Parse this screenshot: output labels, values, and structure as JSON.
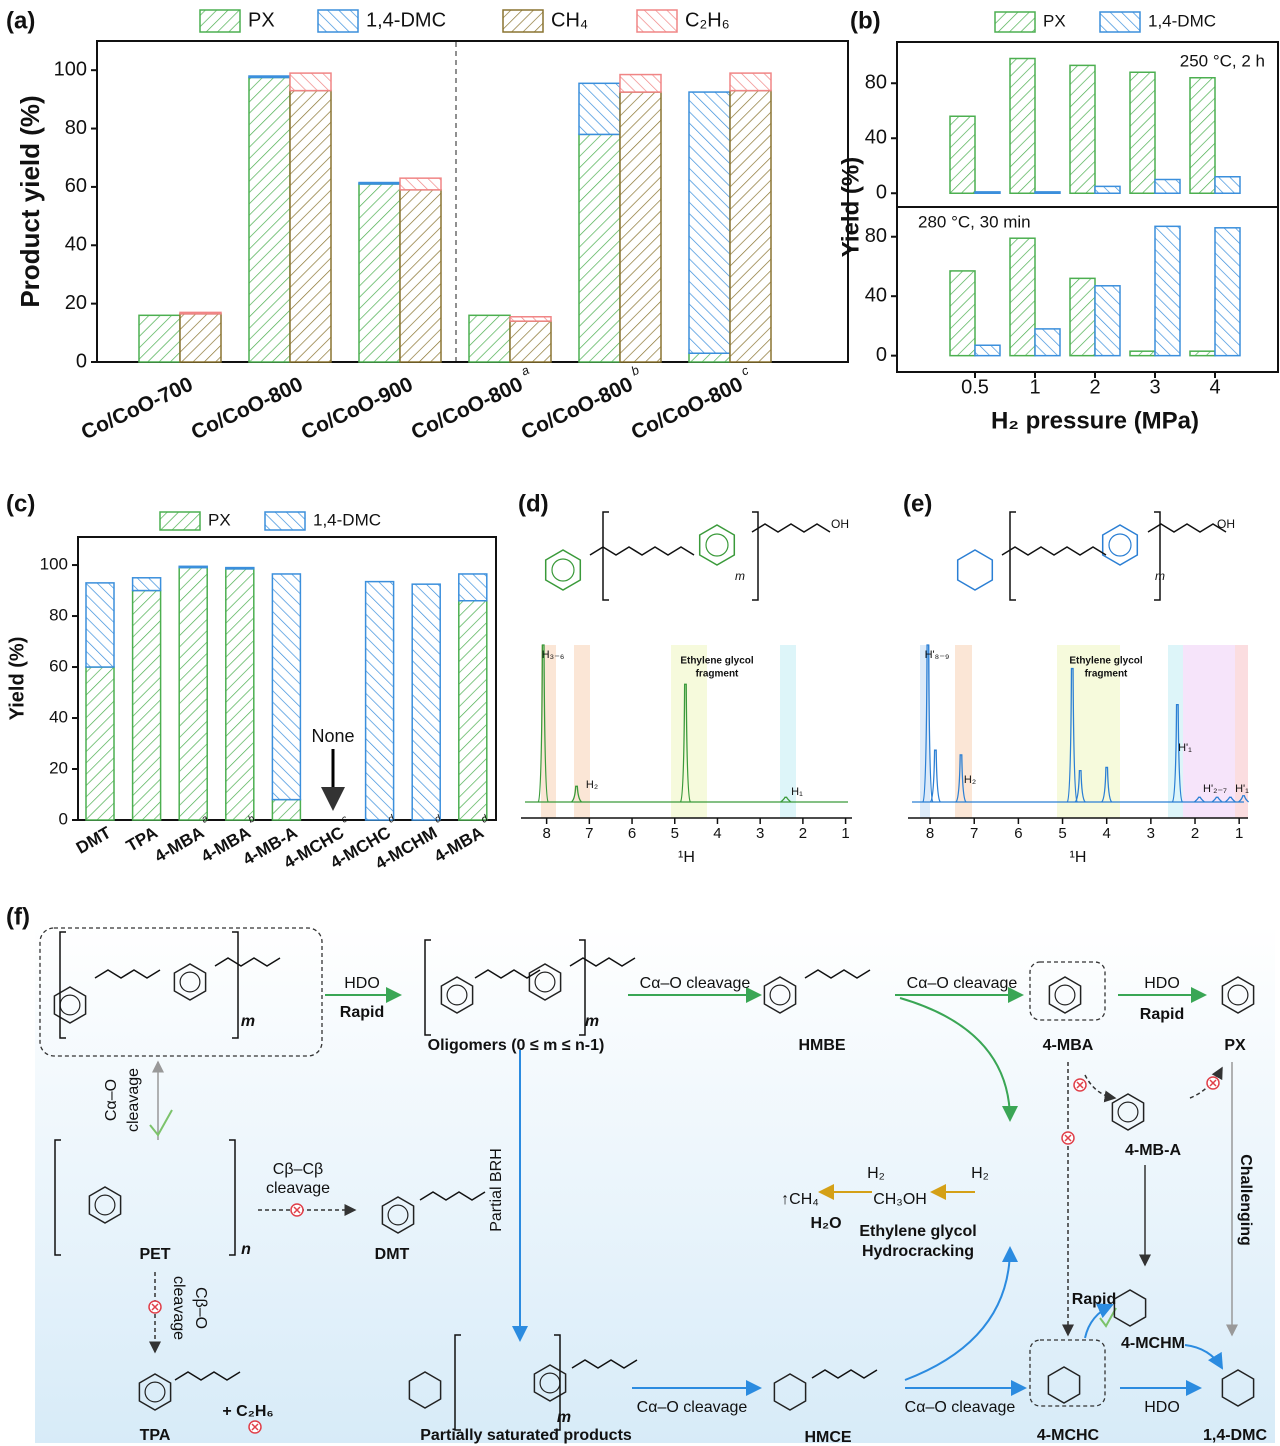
{
  "panel_labels": [
    "(a)",
    "(b)",
    "(c)",
    "(d)",
    "(e)",
    "(f)"
  ],
  "chart_data": [
    {
      "type": "bar",
      "stacked": true,
      "ylabel": "Product yield (%)",
      "categories": [
        "Co/CoO-700",
        "Co/CoO-800",
        "Co/CoO-900",
        "Co/CoO-800",
        "Co/CoO-800",
        "Co/CoO-800"
      ],
      "category_notes": [
        null,
        null,
        null,
        "a",
        "b",
        "c"
      ],
      "series": [
        {
          "name": "PX",
          "color": "#4caf50",
          "hatch": "/",
          "stack": 0,
          "values": [
            16,
            97.5,
            61,
            16,
            78,
            3
          ]
        },
        {
          "name": "1,4-DMC",
          "color": "#3b8fdc",
          "hatch": "\\",
          "stack": 0,
          "values": [
            0,
            0.5,
            0.5,
            0,
            17.5,
            89.5
          ]
        },
        {
          "name": "CH₄",
          "color": "#8a7430",
          "hatch": "/",
          "stack": 1,
          "values": [
            16.5,
            93,
            59,
            14,
            92.5,
            93
          ]
        },
        {
          "name": "C₂H₆",
          "color": "#f08585",
          "hatch": "\\",
          "stack": 1,
          "values": [
            0.5,
            6,
            4,
            1.5,
            6,
            6
          ]
        }
      ],
      "ylim": [
        0,
        110
      ],
      "yticks": [
        0,
        20,
        40,
        60,
        80,
        100
      ],
      "legend": "top"
    },
    {
      "type": "panels",
      "xlabel": "H₂ pressure (MPa)",
      "ylabel": "Yield (%)",
      "categories": [
        "0.5",
        "1",
        "2",
        "3",
        "4"
      ],
      "series": [
        {
          "name": "PX",
          "color": "#4caf50",
          "hatch": "/"
        },
        {
          "name": "1,4-DMC",
          "color": "#3b8fdc",
          "hatch": "\\"
        }
      ],
      "panels": [
        {
          "annotation": "250 °C, 2 h",
          "ylim": [
            -10,
            110
          ],
          "yticks": [
            0,
            40,
            80
          ],
          "values": [
            [
              56,
              98,
              93,
              88,
              84
            ],
            [
              1,
              1,
              5,
              10,
              12
            ]
          ]
        },
        {
          "annotation": "280 °C, 30 min",
          "ylim": [
            -11,
            100
          ],
          "yticks": [
            0,
            40,
            80
          ],
          "values": [
            [
              57,
              79,
              52,
              3,
              3
            ],
            [
              7,
              18,
              47,
              87,
              86
            ]
          ]
        }
      ],
      "legend": "top"
    },
    {
      "type": "bar",
      "stacked": true,
      "ylabel": "Yield (%)",
      "categories": [
        "DMT",
        "TPA",
        "4-MBA",
        "4-MBA",
        "4-MB-A",
        "4-MCHC",
        "4-MCHC",
        "4-MCHM",
        "4-MBA"
      ],
      "category_notes": [
        null,
        null,
        "a",
        "b",
        null,
        "c",
        "d",
        "d",
        "d"
      ],
      "series": [
        {
          "name": "PX",
          "color": "#4caf50",
          "hatch": "/",
          "stack": 0,
          "values": [
            60,
            90,
            99,
            98.5,
            8,
            0,
            0,
            0,
            86
          ]
        },
        {
          "name": "1,4-DMC",
          "color": "#3b8fdc",
          "hatch": "\\",
          "stack": 0,
          "values": [
            33,
            5,
            0.5,
            0.5,
            88.5,
            0,
            93.5,
            92.5,
            10.5
          ]
        }
      ],
      "annotation": "None",
      "ylim": [
        0,
        111
      ],
      "yticks": [
        0,
        20,
        40,
        60,
        80,
        100
      ],
      "legend": "top"
    },
    {
      "type": "spectrum",
      "xlabel": "¹H",
      "color": "#3a9a3a",
      "xlim": [
        8.6,
        0.85
      ],
      "xticks": [
        8,
        7,
        6,
        5,
        4,
        3,
        2,
        1
      ],
      "peaks": {
        "x": [
          8.08,
          7.3,
          4.75,
          2.4
        ],
        "values": [
          100,
          10,
          75,
          3
        ]
      },
      "labels": [
        "H₃₋₆",
        "H₂",
        "Ethylene glycol",
        "fragment",
        "H₁"
      ],
      "structure_labels": [
        "OH",
        "m"
      ]
    },
    {
      "type": "spectrum",
      "xlabel": "¹H",
      "color": "#2b7fd4",
      "xlim": [
        8.5,
        0.8
      ],
      "xticks": [
        8,
        7,
        6,
        5,
        4,
        3,
        2,
        1
      ],
      "peaks": {
        "x": [
          8.05,
          7.88,
          7.3,
          4.78,
          4.6,
          4.0,
          2.4,
          1.9,
          1.5,
          1.2,
          0.9
        ],
        "values": [
          100,
          33,
          30,
          85,
          20,
          22,
          62,
          3,
          3,
          3,
          4
        ]
      },
      "labels": [
        "H'₈₋₉",
        "H₂",
        "Ethylene glycol",
        "fragment",
        "H'₁",
        "H'₂₋₇",
        "H'₁"
      ],
      "structure_labels": [
        "OH",
        "m"
      ]
    }
  ],
  "scheme": {
    "labels": [
      "HDO",
      "Rapid",
      "Oligomers (0 ≤ m ≤ n-1)",
      "Cα–O cleavage",
      "HMBE",
      "Cα–O cleavage",
      "4-MBA",
      "HDO",
      "Rapid",
      "PX",
      "4-MB-A",
      "Challenging",
      "Cα–O",
      "cleavage",
      "PET",
      "n",
      "Cβ–Cβ",
      "cleavage",
      "DMT",
      "Cβ–O",
      "cleavage",
      "TPA",
      "+ C₂H₆",
      "Partial BRH",
      "H₂",
      "H₂",
      "↑CH₄",
      "CH₃OH",
      "H₂O",
      "Ethylene glycol",
      "Hydrocracking",
      "Rapid",
      "4-MCHM",
      "Partially saturated products",
      "Cα–O cleavage",
      "HMCE",
      "Cα–O cleavage",
      "4-MCHC",
      "HDO",
      "1,4-DMC",
      "m",
      "m",
      "m"
    ]
  }
}
